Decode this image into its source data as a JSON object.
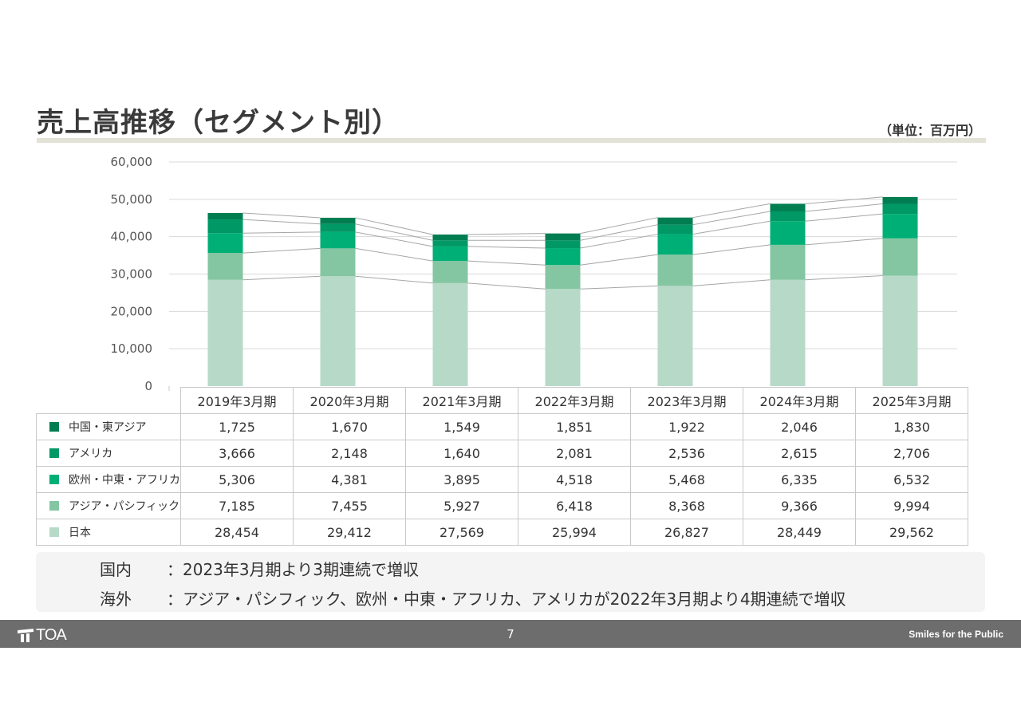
{
  "header": {
    "title": "売上高推移（セグメント別）",
    "unit": "（単位：百万円）"
  },
  "chart_data": {
    "type": "bar",
    "stacked": true,
    "categories": [
      "2019年3月期",
      "2020年3月期",
      "2021年3月期",
      "2022年3月期",
      "2023年3月期",
      "2024年3月期",
      "2025年3月期"
    ],
    "ylim": [
      0,
      60000
    ],
    "yticks": [
      "0",
      "10,000",
      "20,000",
      "30,000",
      "40,000",
      "50,000",
      "60,000"
    ],
    "grid": true,
    "series_lines": true,
    "series": [
      {
        "name": "日本",
        "color": "#b7dac8",
        "values": [
          28454,
          29412,
          27569,
          25994,
          26827,
          28449,
          29562
        ],
        "labels": [
          "28,454",
          "29,412",
          "27,569",
          "25,994",
          "26,827",
          "28,449",
          "29,562"
        ]
      },
      {
        "name": "アジア・パシフィック",
        "color": "#84c6a2",
        "values": [
          7185,
          7455,
          5927,
          6418,
          8368,
          9366,
          9994
        ],
        "labels": [
          "7,185",
          "7,455",
          "5,927",
          "6,418",
          "8,368",
          "9,366",
          "9,994"
        ]
      },
      {
        "name": "欧州・中東・アフリカ",
        "color": "#00af76",
        "values": [
          5306,
          4381,
          3895,
          4518,
          5468,
          6335,
          6532
        ],
        "labels": [
          "5,306",
          "4,381",
          "3,895",
          "4,518",
          "5,468",
          "6,335",
          "6,532"
        ]
      },
      {
        "name": "アメリカ",
        "color": "#009865",
        "values": [
          3666,
          2148,
          1640,
          2081,
          2536,
          2615,
          2706
        ],
        "labels": [
          "3,666",
          "2,148",
          "1,640",
          "2,081",
          "2,536",
          "2,615",
          "2,706"
        ]
      },
      {
        "name": "中国・東アジア",
        "color": "#007e52",
        "values": [
          1725,
          1670,
          1549,
          1851,
          1922,
          2046,
          1830
        ],
        "labels": [
          "1,725",
          "1,670",
          "1,549",
          "1,851",
          "1,922",
          "2,046",
          "1,830"
        ]
      }
    ]
  },
  "notes": [
    {
      "label": "国内",
      "text": "：2023年3月期より3期連続で増収"
    },
    {
      "label": "海外",
      "text": "：アジア・パシフィック、欧州・中東・アフリカ、アメリカが2022年3月期より4期連続で増収"
    }
  ],
  "footer": {
    "logo_text": "TOA",
    "page_number": "7",
    "tagline": "Smiles for the Public"
  }
}
